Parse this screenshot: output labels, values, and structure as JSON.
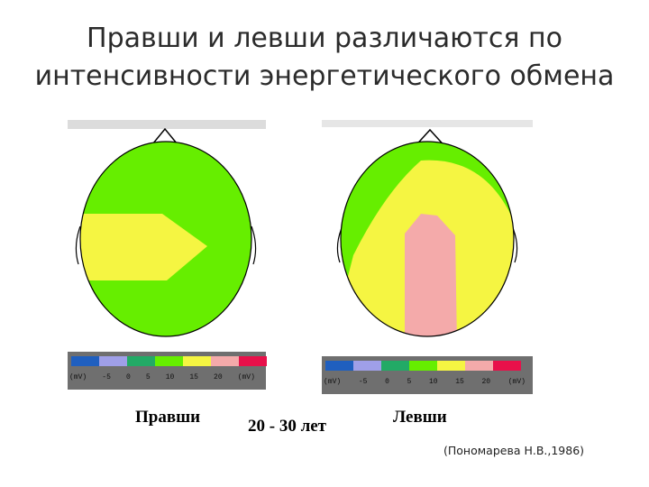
{
  "title_line1": "Правши и левши различаются по",
  "title_line2": "интенсивности энергетического обмена",
  "colors": {
    "green": "#66ee00",
    "yellow": "#f5f542",
    "pink": "#f4aaaa",
    "panel_bg": "#6f6f6f"
  },
  "scale": {
    "colors": [
      "#1f5fbf",
      "#9f9fe8",
      "#22aa66",
      "#66ee00",
      "#f5f542",
      "#f4aaaa",
      "#e8104a"
    ],
    "labels": [
      "(mV)",
      "-5",
      "0",
      "5",
      "10",
      "15",
      "20",
      "(mV)"
    ]
  },
  "caption_left": "Правши",
  "caption_center": "20 - 30 лет",
  "caption_right": "Левши",
  "reference": "(Пономарева Н.В.,1986)"
}
